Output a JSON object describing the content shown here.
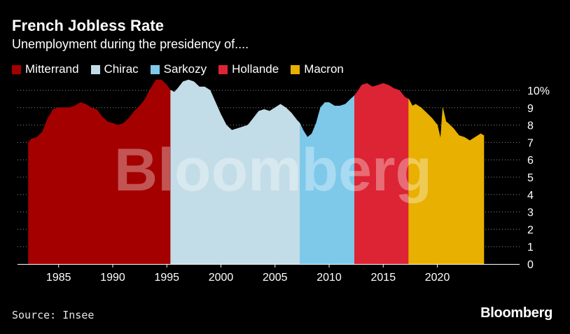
{
  "header": {
    "title": "French Jobless Rate",
    "subtitle": "Unemployment during the presidency of...."
  },
  "footer": {
    "source": "Source: Insee",
    "brand": "Bloomberg"
  },
  "watermark": "Bloomberg",
  "chart_data": {
    "type": "area",
    "title": "French Jobless Rate",
    "subtitle": "Unemployment during the presidency of....",
    "xlabel": "",
    "ylabel": "",
    "xlim": [
      1981.2,
      2027.6
    ],
    "ylim": [
      0,
      10
    ],
    "x_ticks": [
      1985,
      1990,
      1995,
      2000,
      2005,
      2010,
      2015,
      2020
    ],
    "y_ticks": [
      0,
      1,
      2,
      3,
      4,
      5,
      6,
      7,
      8,
      9,
      10
    ],
    "y_tick_labels": [
      "0",
      "1",
      "2",
      "3",
      "4",
      "5",
      "6",
      "7",
      "8",
      "9",
      "10%"
    ],
    "grid": "horizontal dotted",
    "legend_position": "top-left",
    "series": [
      {
        "name": "Mitterrand",
        "color": "#a50000",
        "x": [
          1982.2,
          1982.5,
          1983.0,
          1983.5,
          1984.0,
          1984.5,
          1985.0,
          1985.5,
          1986.0,
          1986.5,
          1987.0,
          1987.5,
          1988.0,
          1988.5,
          1989.0,
          1989.5,
          1990.0,
          1990.5,
          1991.0,
          1991.5,
          1992.0,
          1992.5,
          1993.0,
          1993.5,
          1994.0,
          1994.5,
          1995.0,
          1995.35
        ],
        "values": [
          7.0,
          7.2,
          7.3,
          7.6,
          8.4,
          8.9,
          9.0,
          9.0,
          9.0,
          9.1,
          9.3,
          9.2,
          9.0,
          8.9,
          8.5,
          8.2,
          8.1,
          8.0,
          8.1,
          8.4,
          8.8,
          9.1,
          9.5,
          10.1,
          10.6,
          10.6,
          10.3,
          10.0
        ]
      },
      {
        "name": "Chirac",
        "color": "#c3dde8",
        "x": [
          1995.35,
          1995.7,
          1996.0,
          1996.5,
          1997.0,
          1997.5,
          1998.0,
          1998.5,
          1999.0,
          1999.5,
          2000.0,
          2000.5,
          2001.0,
          2001.5,
          2002.0,
          2002.5,
          2003.0,
          2003.5,
          2004.0,
          2004.5,
          2005.0,
          2005.5,
          2006.0,
          2006.5,
          2007.0,
          2007.3
        ],
        "values": [
          10.0,
          9.9,
          10.1,
          10.5,
          10.6,
          10.5,
          10.2,
          10.2,
          10.0,
          9.3,
          8.6,
          8.0,
          7.7,
          7.8,
          7.9,
          8.0,
          8.4,
          8.8,
          8.9,
          8.8,
          9.0,
          9.2,
          9.0,
          8.7,
          8.3,
          8.1
        ]
      },
      {
        "name": "Sarkozy",
        "color": "#7ec8ea",
        "x": [
          2007.3,
          2007.6,
          2008.0,
          2008.4,
          2008.8,
          2009.2,
          2009.6,
          2010.0,
          2010.5,
          2011.0,
          2011.5,
          2012.0,
          2012.35
        ],
        "values": [
          8.1,
          7.7,
          7.3,
          7.5,
          8.1,
          9.0,
          9.3,
          9.3,
          9.1,
          9.1,
          9.2,
          9.5,
          9.7
        ]
      },
      {
        "name": "Hollande",
        "color": "#dc2434",
        "x": [
          2012.35,
          2012.7,
          2013.0,
          2013.5,
          2014.0,
          2014.5,
          2015.0,
          2015.5,
          2016.0,
          2016.5,
          2017.0,
          2017.35
        ],
        "values": [
          9.7,
          10.0,
          10.3,
          10.4,
          10.2,
          10.3,
          10.4,
          10.3,
          10.1,
          10.0,
          9.6,
          9.5
        ]
      },
      {
        "name": "Macron",
        "color": "#e8b000",
        "x": [
          2017.35,
          2017.7,
          2018.0,
          2018.5,
          2019.0,
          2019.5,
          2020.0,
          2020.3,
          2020.5,
          2020.8,
          2021.0,
          2021.5,
          2022.0,
          2022.5,
          2023.0,
          2023.5,
          2024.0,
          2024.3
        ],
        "values": [
          9.5,
          9.1,
          9.2,
          9.0,
          8.7,
          8.4,
          8.0,
          7.2,
          9.0,
          8.2,
          8.1,
          7.8,
          7.4,
          7.3,
          7.1,
          7.3,
          7.5,
          7.4
        ]
      }
    ]
  }
}
